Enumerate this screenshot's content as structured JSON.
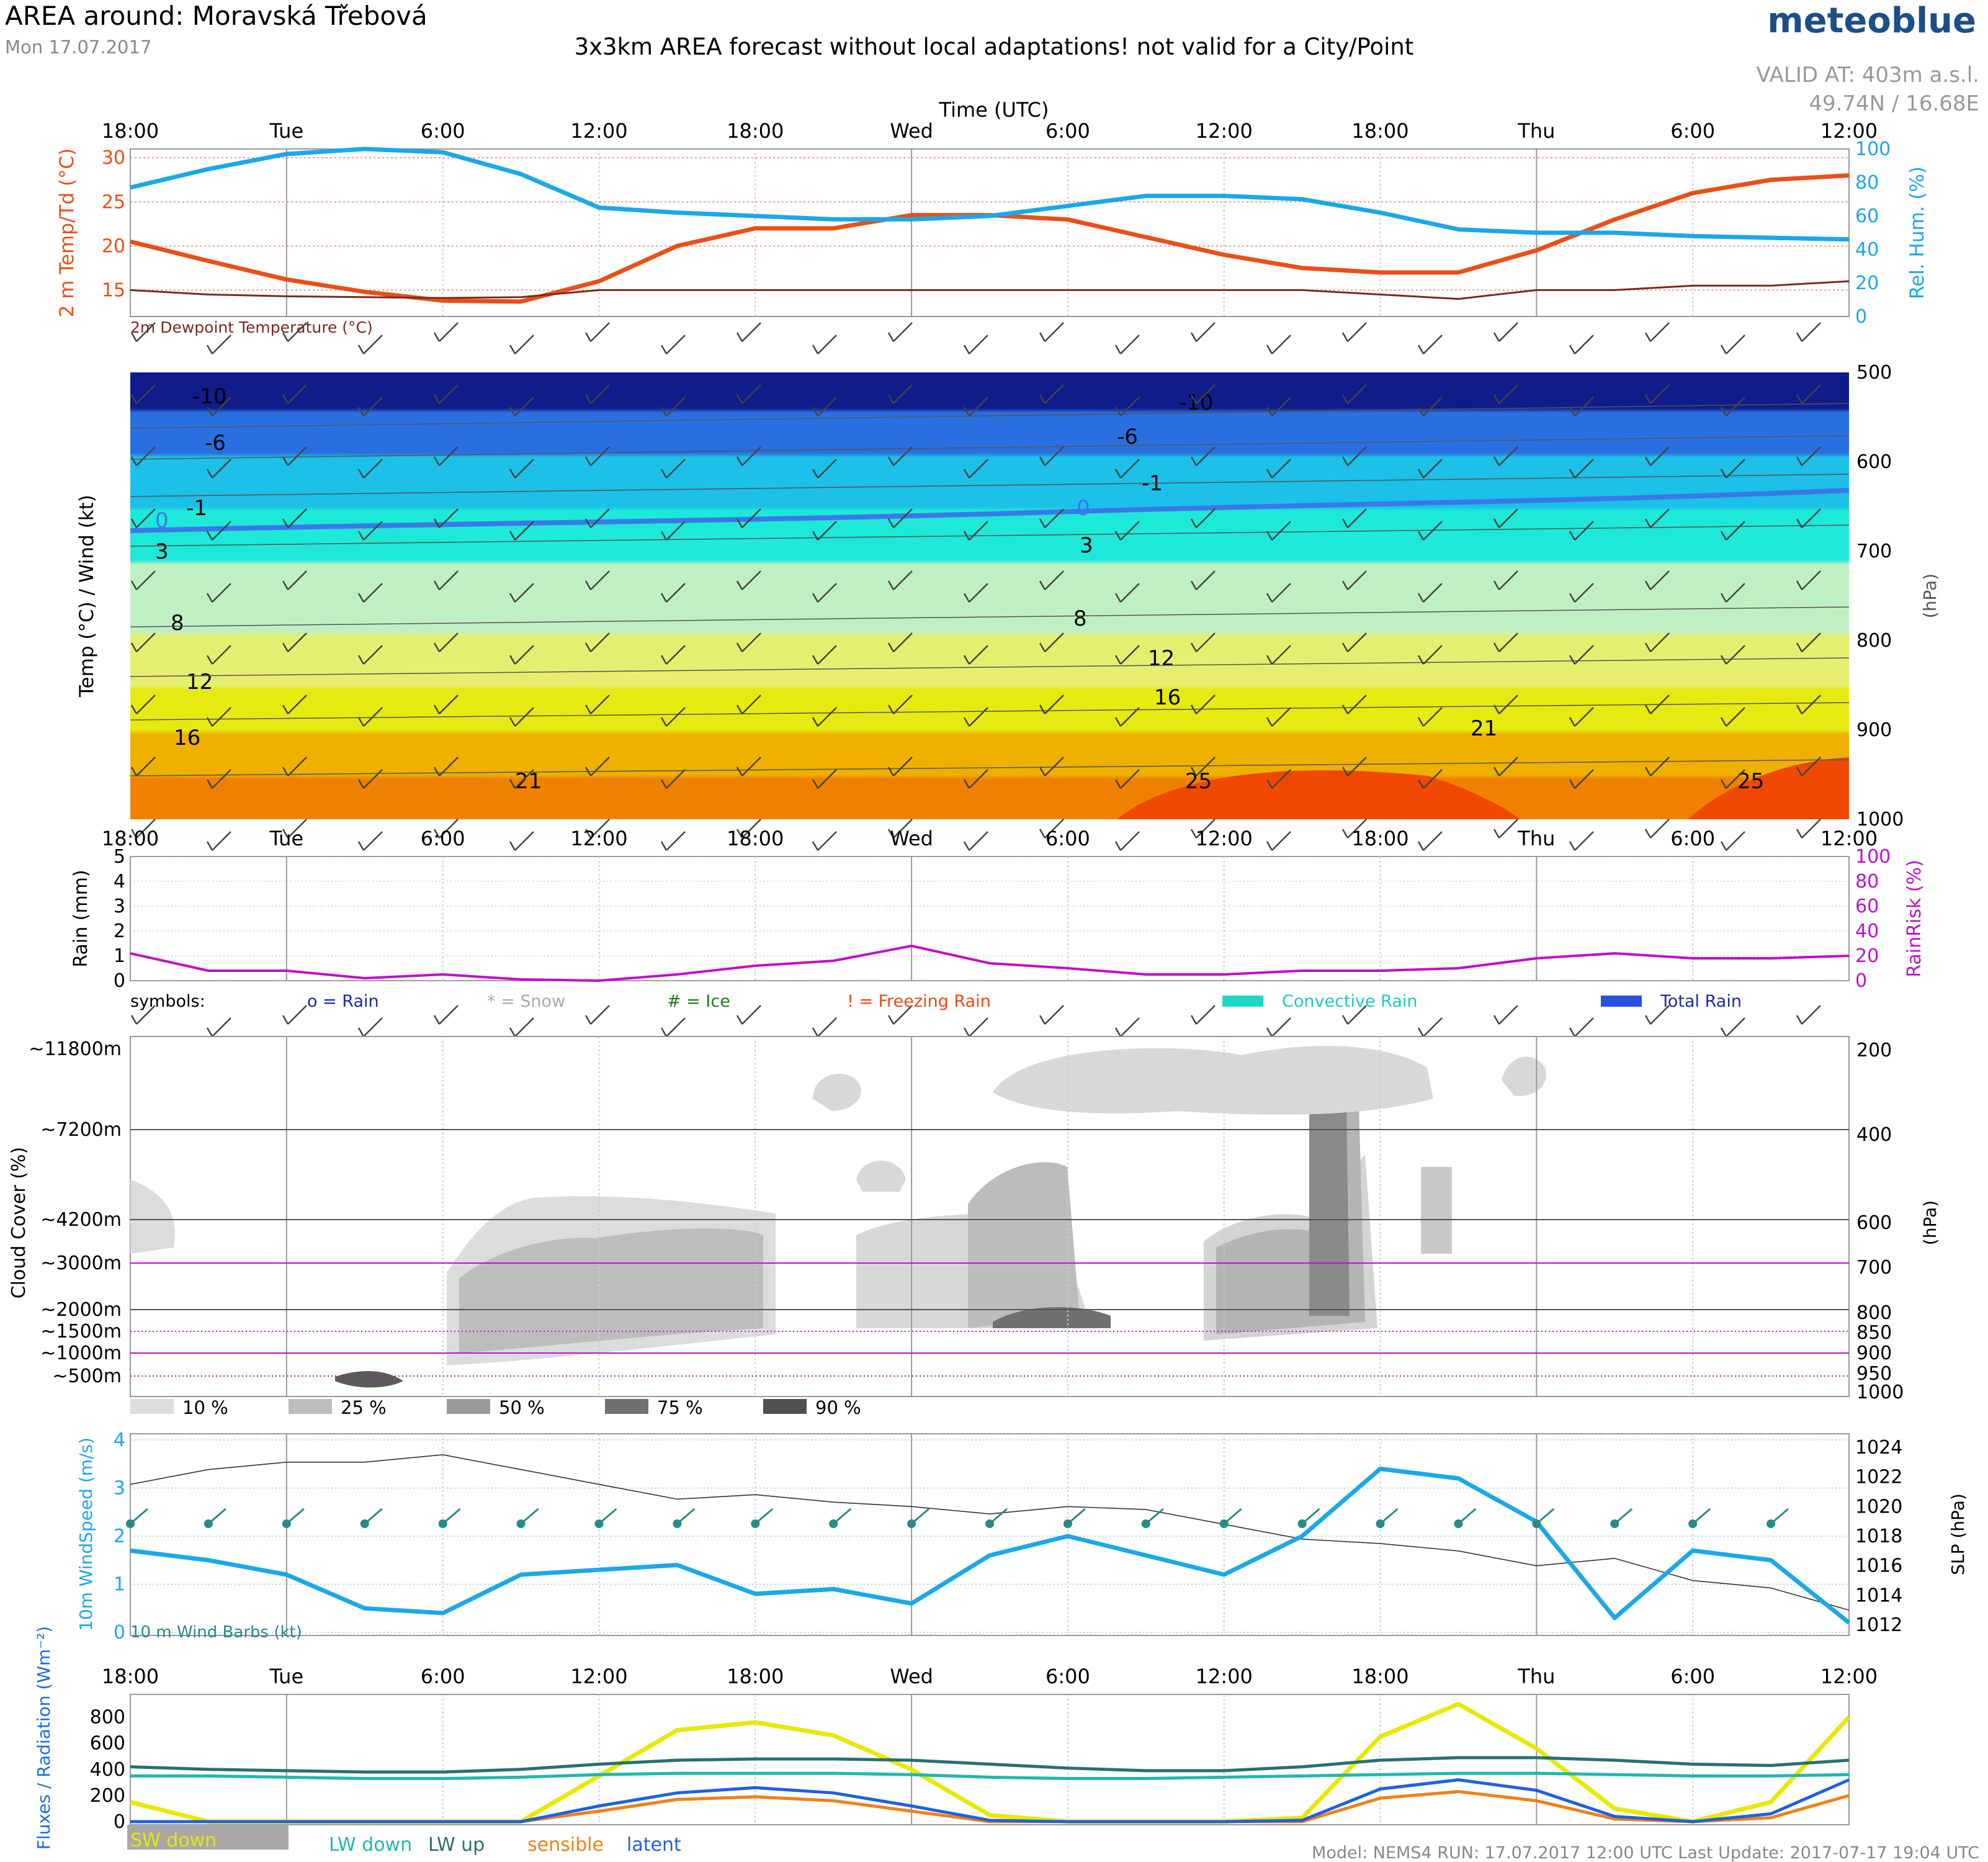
{
  "header": {
    "title": "AREA around: Moravská Třebová",
    "date": "Mon 17.07.2017",
    "subtitle": "3x3km AREA forecast without local adaptations! not valid for a City/Point",
    "brand": "meteoblue",
    "valid_at": "VALID AT: 403m a.s.l.",
    "coords": "49.74N / 16.68E"
  },
  "time_axis": {
    "title": "Time (UTC)",
    "ticks": [
      "18:00",
      "Tue",
      "6:00",
      "12:00",
      "18:00",
      "Wed",
      "6:00",
      "12:00",
      "18:00",
      "Thu",
      "6:00",
      "12:00"
    ],
    "day_ticks": [
      1,
      5,
      9
    ]
  },
  "footer": "Model: NEMS4    RUN: 17.07.2017 12:00 UTC    Last Update: 2017-07-17 19:04 UTC",
  "colors": {
    "temp": "#e8501a",
    "humidity": "#1ba8e8",
    "dewpoint": "#7a2a20",
    "rain_risk": "#c010c8",
    "wind_teal": "#2a8a86",
    "sw_down": "#e8e800",
    "lw_down": "#20b8b0",
    "lw_up": "#2a7070",
    "sensible": "#f08018",
    "latent": "#2060e0"
  },
  "chart_data": [
    {
      "type": "line",
      "name": "temperature-humidity",
      "ylabel": "2 m Temp/Td (°C)",
      "y2label": "Rel. Hum. (%)",
      "ylim": [
        12,
        31
      ],
      "y2lim": [
        0,
        100
      ],
      "yticks": [
        15,
        20,
        25,
        30
      ],
      "y2ticks": [
        0,
        20,
        40,
        60,
        80,
        100
      ],
      "annotation": "2m Dewpoint Temperature (°C)",
      "x": [
        0,
        3,
        6,
        9,
        12,
        15,
        18,
        21,
        24,
        27,
        30,
        33,
        36,
        39,
        42,
        45,
        48,
        51,
        54,
        57,
        60,
        63,
        66
      ],
      "series": [
        {
          "key": "temp",
          "values": [
            20.5,
            18.3,
            16.2,
            14.8,
            13.8,
            13.7,
            16,
            20,
            22,
            22,
            23.5,
            23.5,
            23,
            21,
            19,
            17.5,
            17,
            17,
            19.5,
            23,
            26,
            27.5,
            28
          ]
        },
        {
          "key": "humidity",
          "values": [
            77,
            88,
            97,
            100,
            98,
            85,
            65,
            62,
            60,
            58,
            58,
            60,
            66,
            72,
            72,
            70,
            62,
            52,
            50,
            50,
            48,
            47,
            46
          ]
        },
        {
          "key": "dewpoint",
          "values": [
            15,
            14.5,
            14.3,
            14.2,
            14.1,
            14.2,
            15,
            15,
            15,
            15,
            15,
            15,
            15,
            15,
            15,
            15,
            14.5,
            14,
            15,
            15,
            15.5,
            15.5,
            16
          ]
        }
      ]
    },
    {
      "type": "heatmap",
      "name": "temp-wind-cross-section",
      "ylabel": "Temp (°C) / Wind (kt)",
      "y2label": "(hPa)",
      "pressure_ticks": [
        500,
        600,
        700,
        800,
        900,
        1000
      ],
      "contour_labels": [
        -10,
        -6,
        -1,
        0,
        3,
        8,
        12,
        16,
        21,
        25
      ]
    },
    {
      "type": "line",
      "name": "rain",
      "ylabel": "Rain (mm)",
      "y2label": "RainRisk (%)",
      "ylim": [
        0,
        5
      ],
      "yticks": [
        0,
        1,
        2,
        3,
        4,
        5
      ],
      "y2ticks": [
        0,
        20,
        40,
        60,
        80,
        100
      ],
      "x": [
        0,
        3,
        6,
        9,
        12,
        15,
        18,
        21,
        24,
        27,
        30,
        33,
        36,
        39,
        42,
        45,
        48,
        51,
        54,
        57,
        60,
        63,
        66
      ],
      "rain_risk": [
        22,
        8,
        8,
        2,
        5,
        1,
        0,
        5,
        12,
        16,
        28,
        14,
        10,
        5,
        5,
        8,
        8,
        10,
        18,
        22,
        18,
        18,
        20
      ],
      "legend": {
        "symbols": "symbols:",
        "rain": "o = Rain",
        "snow": "* = Snow",
        "ice": "# = Ice",
        "freezing": "! = Freezing Rain",
        "convective": "Convective Rain",
        "total": "Total Rain"
      }
    },
    {
      "type": "heatmap",
      "name": "cloud-cover",
      "ylabel": "Cloud Cover (%)",
      "y2label": "(hPa)",
      "height_labels": [
        "~11800m",
        "~7200m",
        "~4200m",
        "~3000m",
        "~2000m",
        "~1500m",
        "~1000m",
        "~500m"
      ],
      "pressure_labels": [
        "200",
        "400",
        "600",
        "700",
        "800",
        "850",
        "900",
        "950",
        "1000"
      ],
      "legend": [
        "10 %",
        "25 %",
        "50 %",
        "75 %",
        "90 %"
      ]
    },
    {
      "type": "line",
      "name": "wind-pressure",
      "ylabel": "10m WindSpeed (m/s)",
      "y2label": "SLP (hPa)",
      "ylim": [
        0,
        4
      ],
      "yticks": [
        0,
        1,
        2,
        3,
        4
      ],
      "y2lim": [
        1011.5,
        1024.5
      ],
      "y2ticks": [
        1012,
        1014,
        1016,
        1018,
        1020,
        1022,
        1024
      ],
      "annotation": "10 m Wind Barbs (kt)",
      "x": [
        0,
        3,
        6,
        9,
        12,
        15,
        18,
        21,
        24,
        27,
        30,
        33,
        36,
        39,
        42,
        45,
        48,
        51,
        54,
        57,
        60,
        63,
        66
      ],
      "wind_speed": [
        1.7,
        1.5,
        1.2,
        0.5,
        0.4,
        1.2,
        1.3,
        1.4,
        0.8,
        0.9,
        0.6,
        1.6,
        2.0,
        1.6,
        1.2,
        2.0,
        3.4,
        3.2,
        2.3,
        0.3,
        1.7,
        1.5,
        0.2
      ],
      "slp": [
        1021.5,
        1022.5,
        1023,
        1023,
        1023.5,
        1022.5,
        1021.5,
        1020.5,
        1020.8,
        1020.3,
        1020,
        1019.5,
        1020,
        1019.8,
        1018.8,
        1017.8,
        1017.5,
        1017,
        1016,
        1016.5,
        1015,
        1014.5,
        1013
      ]
    },
    {
      "type": "line",
      "name": "fluxes-radiation",
      "ylabel": "Fluxes / Radiation (Wm⁻²)",
      "ylim": [
        0,
        950
      ],
      "yticks": [
        0,
        200,
        400,
        600,
        800
      ],
      "x": [
        0,
        3,
        6,
        9,
        12,
        15,
        18,
        21,
        24,
        27,
        30,
        33,
        36,
        39,
        42,
        45,
        48,
        51,
        54,
        57,
        60,
        63,
        66
      ],
      "series": [
        {
          "key": "sw_down",
          "label": "SW down",
          "values": [
            150,
            0,
            0,
            0,
            0,
            0,
            350,
            700,
            760,
            660,
            400,
            50,
            0,
            0,
            0,
            30,
            650,
            900,
            560,
            100,
            0,
            150,
            800
          ]
        },
        {
          "key": "lw_down",
          "label": "LW down",
          "values": [
            350,
            350,
            340,
            330,
            330,
            340,
            360,
            370,
            370,
            370,
            360,
            340,
            330,
            330,
            340,
            350,
            360,
            370,
            370,
            360,
            350,
            350,
            360
          ]
        },
        {
          "key": "lw_up",
          "label": "LW up",
          "values": [
            420,
            400,
            390,
            380,
            380,
            400,
            440,
            470,
            480,
            480,
            470,
            440,
            410,
            390,
            390,
            420,
            470,
            490,
            490,
            470,
            440,
            430,
            470
          ]
        },
        {
          "key": "sensible",
          "label": "sensible",
          "values": [
            0,
            0,
            0,
            0,
            0,
            0,
            80,
            170,
            190,
            160,
            80,
            0,
            0,
            0,
            0,
            0,
            180,
            230,
            160,
            20,
            0,
            30,
            200
          ]
        },
        {
          "key": "latent",
          "label": "latent",
          "values": [
            0,
            0,
            0,
            0,
            0,
            0,
            120,
            220,
            260,
            220,
            120,
            10,
            0,
            0,
            0,
            10,
            250,
            320,
            240,
            40,
            0,
            60,
            320
          ]
        }
      ]
    }
  ]
}
